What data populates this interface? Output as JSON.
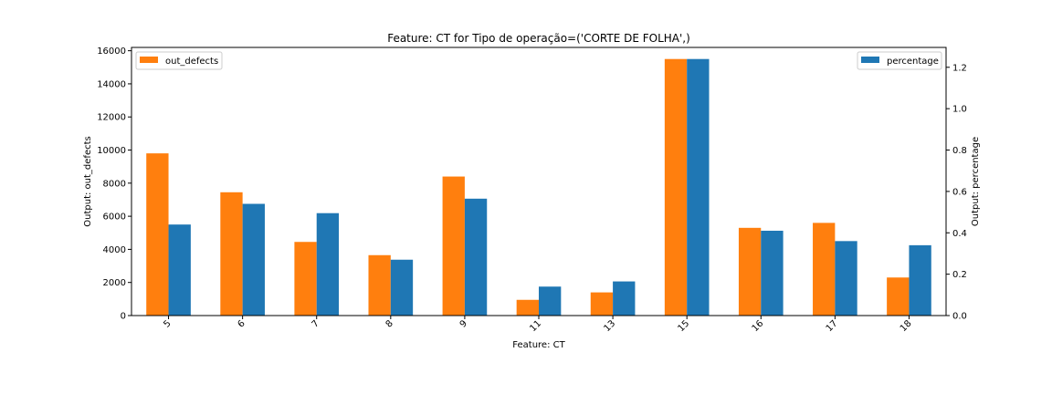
{
  "chart_data": {
    "type": "bar",
    "title": "Feature: CT for Tipo de operação=('CORTE DE FOLHA',)",
    "xlabel": "Feature: CT",
    "ylabel_left": "Output: out_defects",
    "ylabel_right": "Output: percentage",
    "categories": [
      "5",
      "6",
      "7",
      "8",
      "9",
      "11",
      "13",
      "15",
      "16",
      "17",
      "18"
    ],
    "series": [
      {
        "name": "out_defects",
        "axis": "left",
        "color": "#ff7f0e",
        "values": [
          9800,
          7450,
          4450,
          3650,
          8400,
          950,
          1400,
          15500,
          5300,
          5600,
          2300
        ]
      },
      {
        "name": "percentage",
        "axis": "right",
        "color": "#1f77b4",
        "values": [
          0.44,
          0.54,
          0.495,
          0.27,
          0.565,
          0.14,
          0.165,
          1.24,
          0.41,
          0.36,
          0.34
        ]
      }
    ],
    "ylim_left": [
      0,
      16200
    ],
    "ylim_right": [
      0,
      1.296
    ],
    "yticks_left": [
      "0",
      "2000",
      "4000",
      "6000",
      "8000",
      "10000",
      "12000",
      "14000",
      "16000"
    ],
    "yticks_right": [
      "0.0",
      "0.2",
      "0.4",
      "0.6",
      "0.8",
      "1.0",
      "1.2"
    ],
    "legend_left": "top-left",
    "legend_right": "top-right",
    "grid": false
  }
}
